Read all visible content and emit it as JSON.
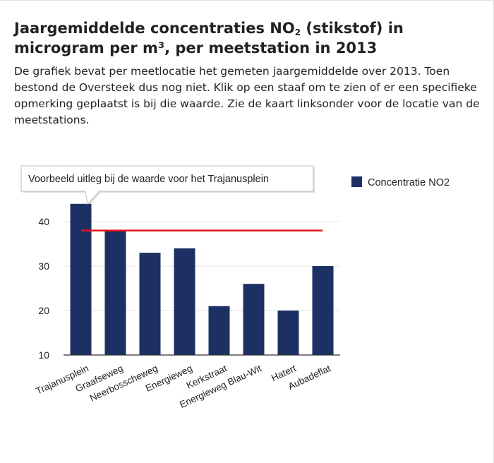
{
  "header": {
    "title_part1": "Jaargemiddelde concentraties NO",
    "title_sub": "2",
    "title_part2": " (stikstof) in microgram per m³, per meetstation in 2013",
    "subtitle": "De grafiek bevat per meetlocatie het gemeten jaargemiddelde over 2013. Toen bestond de Oversteek dus nog niet. Klik op een staaf om te zien of er een specifieke opmerking geplaatst is bij die waarde. Zie de kaart linksonder voor de locatie van de meetstations."
  },
  "chart_data": {
    "type": "bar",
    "categories": [
      "Trajanusplein",
      "Graafseweg",
      "Neerbosscheweg",
      "Energieweg",
      "Kerkstraat",
      "Energieweg Blau-Wit",
      "Hatert",
      "Aubadeflat"
    ],
    "series": [
      {
        "name": "Concentratie NO2",
        "values": [
          44,
          38,
          33,
          34,
          21,
          26,
          20,
          30
        ]
      }
    ],
    "reference_line": {
      "value": 38,
      "color": "#e8141a"
    },
    "ylim": [
      10,
      45
    ],
    "yticks": [
      10,
      20,
      30,
      40
    ],
    "xlabel": "",
    "ylabel": "",
    "grid": true,
    "legend": {
      "position": "top-right"
    },
    "tooltip": {
      "text": "Voorbeeld uitleg bij de waarde voor het Trajanusplein",
      "category": "Trajanusplein"
    },
    "colors": {
      "bar": "#1c3063",
      "reference": "#e8141a",
      "grid": "#e4e4e4",
      "axis": "#333333"
    }
  }
}
